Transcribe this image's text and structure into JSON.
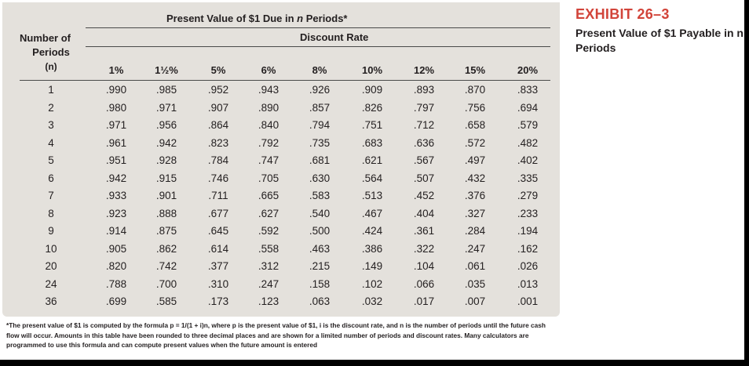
{
  "table": {
    "title_prefix": "Present Value of $1 Due in ",
    "title_n": "n",
    "title_suffix": " Periods*",
    "discount_rate_label": "Discount Rate",
    "periods_header": {
      "line1": "Number of",
      "line2": "Periods",
      "line3": "(n)"
    },
    "rates": [
      "1%",
      "1½%",
      "5%",
      "6%",
      "8%",
      "10%",
      "12%",
      "15%",
      "20%"
    ],
    "rows": [
      {
        "n": "1",
        "values": [
          ".990",
          ".985",
          ".952",
          ".943",
          ".926",
          ".909",
          ".893",
          ".870",
          ".833"
        ]
      },
      {
        "n": "2",
        "values": [
          ".980",
          ".971",
          ".907",
          ".890",
          ".857",
          ".826",
          ".797",
          ".756",
          ".694"
        ]
      },
      {
        "n": "3",
        "values": [
          ".971",
          ".956",
          ".864",
          ".840",
          ".794",
          ".751",
          ".712",
          ".658",
          ".579"
        ]
      },
      {
        "n": "4",
        "values": [
          ".961",
          ".942",
          ".823",
          ".792",
          ".735",
          ".683",
          ".636",
          ".572",
          ".482"
        ]
      },
      {
        "n": "5",
        "values": [
          ".951",
          ".928",
          ".784",
          ".747",
          ".681",
          ".621",
          ".567",
          ".497",
          ".402"
        ]
      },
      {
        "n": "6",
        "values": [
          ".942",
          ".915",
          ".746",
          ".705",
          ".630",
          ".564",
          ".507",
          ".432",
          ".335"
        ]
      },
      {
        "n": "7",
        "values": [
          ".933",
          ".901",
          ".711",
          ".665",
          ".583",
          ".513",
          ".452",
          ".376",
          ".279"
        ]
      },
      {
        "n": "8",
        "values": [
          ".923",
          ".888",
          ".677",
          ".627",
          ".540",
          ".467",
          ".404",
          ".327",
          ".233"
        ]
      },
      {
        "n": "9",
        "values": [
          ".914",
          ".875",
          ".645",
          ".592",
          ".500",
          ".424",
          ".361",
          ".284",
          ".194"
        ]
      },
      {
        "n": "10",
        "values": [
          ".905",
          ".862",
          ".614",
          ".558",
          ".463",
          ".386",
          ".322",
          ".247",
          ".162"
        ]
      },
      {
        "n": "20",
        "values": [
          ".820",
          ".742",
          ".377",
          ".312",
          ".215",
          ".149",
          ".104",
          ".061",
          ".026"
        ]
      },
      {
        "n": "24",
        "values": [
          ".788",
          ".700",
          ".310",
          ".247",
          ".158",
          ".102",
          ".066",
          ".035",
          ".013"
        ]
      },
      {
        "n": "36",
        "values": [
          ".699",
          ".585",
          ".173",
          ".123",
          ".063",
          ".032",
          ".017",
          ".007",
          ".001"
        ]
      }
    ]
  },
  "exhibit": {
    "title": "EXHIBIT 26–3",
    "subtitle": "Present Value of $1 Payable in n Periods"
  },
  "footnote": "*The present value of $1 is computed by the formula p = 1/(1 + i)n, where p is the present value of $1, i is the discount rate, and n is the number of periods until the future cash flow will occur. Amounts in this table have been rounded to three decimal places and are shown for a limited number of periods and discount rates. Many calculators are programmed to use this formula and can compute present values when the future amount is entered",
  "colors": {
    "panel": "#e4e1dc",
    "exhibit_accent": "#d2443a",
    "text": "#231f20"
  }
}
